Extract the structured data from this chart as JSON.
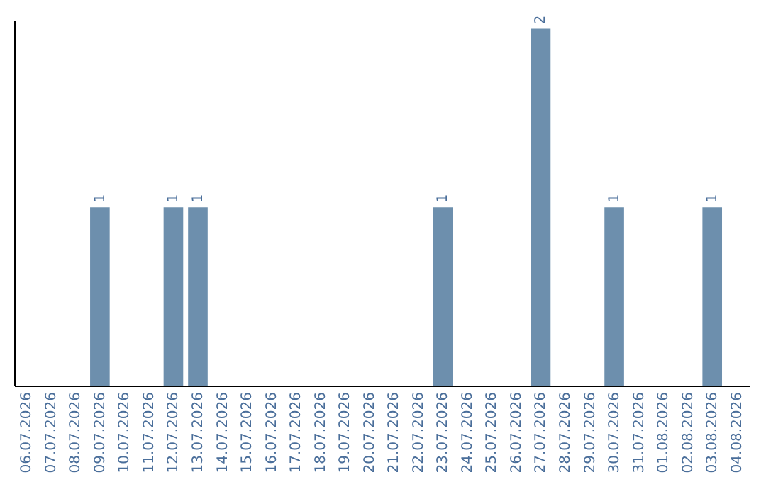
{
  "chart_data": {
    "type": "bar",
    "categories": [
      "06.07.2026",
      "07.07.2026",
      "08.07.2026",
      "09.07.2026",
      "10.07.2026",
      "11.07.2026",
      "12.07.2026",
      "13.07.2026",
      "14.07.2026",
      "15.07.2026",
      "16.07.2026",
      "17.07.2026",
      "18.07.2026",
      "19.07.2026",
      "20.07.2026",
      "21.07.2026",
      "22.07.2026",
      "23.07.2026",
      "24.07.2026",
      "25.07.2026",
      "26.07.2026",
      "27.07.2026",
      "28.07.2026",
      "29.07.2026",
      "30.07.2026",
      "31.07.2026",
      "01.08.2026",
      "02.08.2026",
      "03.08.2026",
      "04.08.2026"
    ],
    "values": [
      0,
      0,
      0,
      1,
      0,
      0,
      1,
      1,
      0,
      0,
      0,
      0,
      0,
      0,
      0,
      0,
      0,
      1,
      0,
      0,
      0,
      2,
      0,
      0,
      1,
      0,
      0,
      0,
      1,
      0
    ],
    "color": "#6d8fad",
    "ylim": [
      0,
      2.05
    ],
    "value_labels": [
      null,
      null,
      null,
      "1",
      null,
      null,
      "1",
      "1",
      null,
      null,
      null,
      null,
      null,
      null,
      null,
      null,
      null,
      "1",
      null,
      null,
      null,
      "2",
      null,
      null,
      "1",
      null,
      null,
      null,
      "1",
      null
    ],
    "tick_labels": "x"
  }
}
